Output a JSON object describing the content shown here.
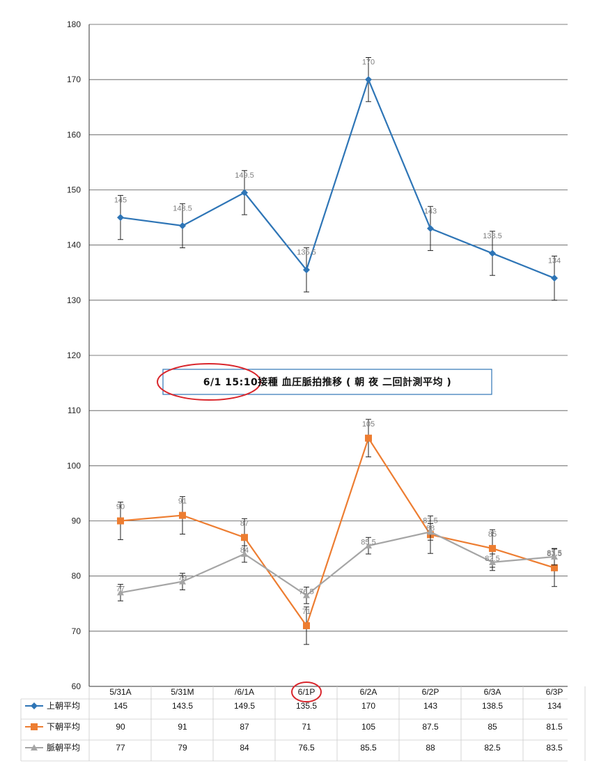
{
  "chart_data": {
    "type": "line",
    "title": "6/1 15:10接種 血圧脈拍推移 ( 朝 夜 二回計測平均 )",
    "xlabel": "",
    "ylabel": "",
    "ylim": [
      60,
      180
    ],
    "y_ticks": [
      60,
      70,
      80,
      90,
      100,
      110,
      120,
      130,
      140,
      150,
      160,
      170,
      180
    ],
    "grid": true,
    "legend_position": "table-left",
    "categories": [
      "5/31A",
      "5/31M",
      "/6/1A",
      "6/1P",
      "6/2A",
      "6/2P",
      "6/3A",
      "6/3P"
    ],
    "highlighted_category": "6/1P",
    "series": [
      {
        "name": "上朝平均",
        "color": "#2e75b6",
        "marker": "diamond",
        "values": [
          145,
          143.5,
          149.5,
          135.5,
          170,
          143,
          138.5,
          134
        ],
        "labels": [
          "145",
          "143.5",
          "149.5",
          "135.5",
          "170",
          "143",
          "138.5",
          "134"
        ],
        "error": 4,
        "table_values": [
          "145",
          "143.5",
          "149.5",
          "135.5",
          "170",
          "143",
          "138.5",
          "134"
        ]
      },
      {
        "name": "下朝平均",
        "color": "#ed7d31",
        "marker": "square",
        "values": [
          90,
          91,
          87,
          71,
          105,
          87.5,
          85,
          81.5
        ],
        "labels": [
          "90",
          "91",
          "87",
          "71",
          "105",
          "87.5",
          "85",
          "81.5"
        ],
        "error": 3.4,
        "table_values": [
          "90",
          "91",
          "87",
          "71",
          "105",
          "87.5",
          "85",
          "81.5"
        ]
      },
      {
        "name": "脈朝平均",
        "color": "#a5a5a5",
        "marker": "triangle",
        "values": [
          77,
          79,
          84,
          76.5,
          85.5,
          88,
          82.5,
          83.5
        ],
        "labels": [
          "77",
          "79",
          "84",
          "76.5",
          "85.5",
          "88",
          "82.5",
          "83.5"
        ],
        "error": 1.5,
        "table_values": [
          "77",
          "79",
          "84",
          "76.5",
          "85.5",
          "88",
          "82.5",
          "83.5"
        ]
      }
    ]
  }
}
